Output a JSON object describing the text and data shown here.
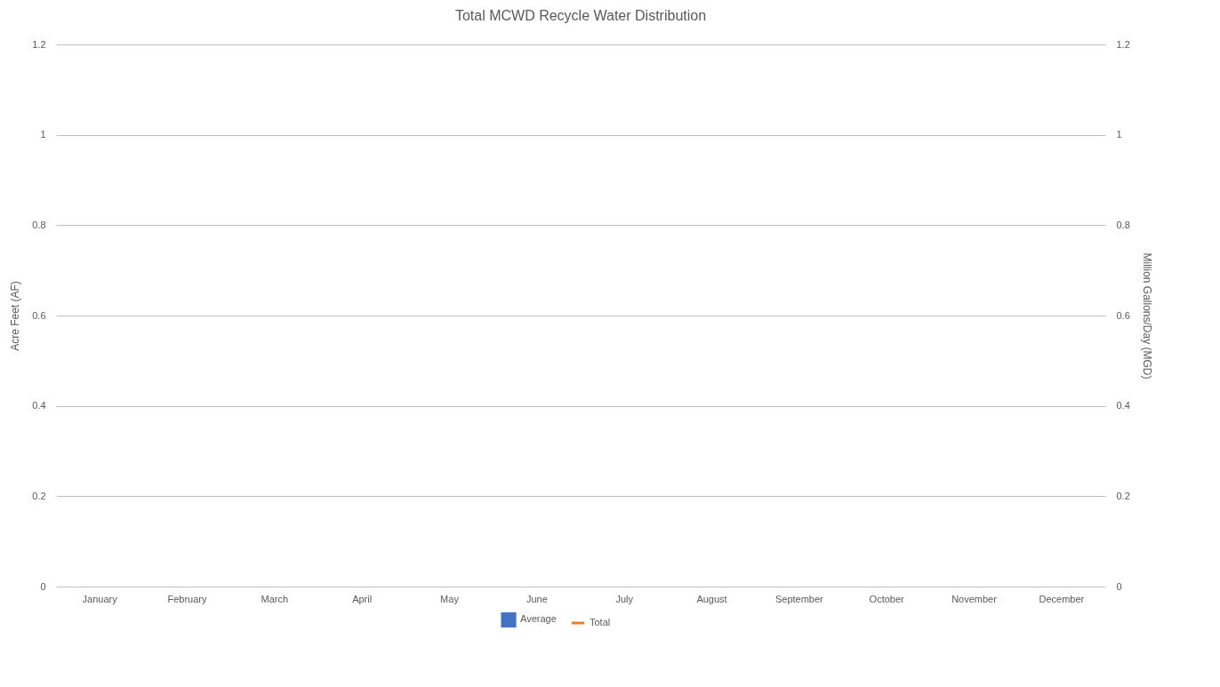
{
  "chart_data": {
    "type": "bar",
    "title": "Total MCWD Recycle Water Distribution",
    "ylabel": "Acre Feet (AF)",
    "y2label": "Million Gallons/Day (MGD)",
    "categories": [
      "January",
      "February",
      "March",
      "April",
      "May",
      "June",
      "July",
      "August",
      "September",
      "October",
      "November",
      "December"
    ],
    "series": [
      {
        "name": "Average",
        "color": "#4472c4",
        "values": [
          null,
          null,
          null,
          null,
          null,
          null,
          null,
          null,
          null,
          null,
          null,
          null
        ]
      },
      {
        "name": "Total",
        "type": "line",
        "axis": "y2",
        "color": "#ed7d31",
        "values": [
          null,
          null,
          null,
          null,
          null,
          null,
          null,
          null,
          null,
          null,
          null,
          null
        ]
      }
    ],
    "ylim": [
      0,
      1.2
    ],
    "yticks": [
      0,
      0.2,
      0.4,
      0.6,
      0.8,
      1,
      1.2
    ],
    "y2lim": [
      0,
      1.2
    ],
    "y2ticks": [
      0,
      0.2,
      0.4,
      0.6,
      0.8,
      1,
      1.2
    ],
    "grid": "y",
    "legend": "bottom"
  }
}
